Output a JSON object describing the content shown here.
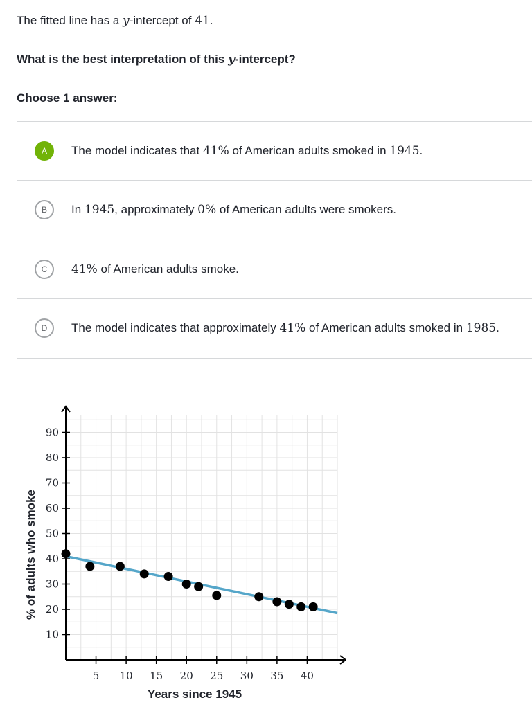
{
  "prompt": {
    "pre": "The fitted line has a ",
    "var": "y",
    "mid": "-intercept of ",
    "value": "41",
    "post": "."
  },
  "question": {
    "pre": "What is the best interpretation of this ",
    "var": "y",
    "post": "-intercept?"
  },
  "choose_label": "Choose 1 answer:",
  "choices": [
    {
      "letter": "A",
      "selected": true,
      "parts": [
        "The model indicates that ",
        "41%",
        " of American adults smoked in ",
        "1945",
        "."
      ]
    },
    {
      "letter": "B",
      "selected": false,
      "parts": [
        "In ",
        "1945",
        ", approximately ",
        "0%",
        " of American adults were smokers."
      ]
    },
    {
      "letter": "C",
      "selected": false,
      "parts": [
        "",
        "41%",
        " of American adults smoke.",
        "",
        ""
      ]
    },
    {
      "letter": "D",
      "selected": false,
      "parts": [
        "The model indicates that approximately ",
        "41%",
        " of American adults smoked in ",
        "1985",
        "."
      ]
    }
  ],
  "colors": {
    "selected_badge": "#71b307",
    "fit_line": "#55a6c9",
    "points": "#000000",
    "grid": "#e2e2e2",
    "axis": "#000000"
  },
  "chart_data": {
    "type": "scatter",
    "xlabel": "Years since 1945",
    "ylabel": "% of adults who smoke",
    "xlim": [
      0,
      45
    ],
    "ylim": [
      0,
      100
    ],
    "x_grid_step": 2.5,
    "y_grid_step": 5,
    "x_ticks": [
      5,
      10,
      15,
      20,
      25,
      30,
      35,
      40
    ],
    "y_ticks": [
      10,
      20,
      30,
      40,
      50,
      60,
      70,
      80,
      90
    ],
    "grid": true,
    "points": [
      {
        "x": 0,
        "y": 42
      },
      {
        "x": 4,
        "y": 37
      },
      {
        "x": 9,
        "y": 37
      },
      {
        "x": 13,
        "y": 34
      },
      {
        "x": 17,
        "y": 33
      },
      {
        "x": 20,
        "y": 30
      },
      {
        "x": 22,
        "y": 29
      },
      {
        "x": 25,
        "y": 25.5
      },
      {
        "x": 32,
        "y": 25
      },
      {
        "x": 35,
        "y": 23
      },
      {
        "x": 37,
        "y": 22
      },
      {
        "x": 39,
        "y": 21
      },
      {
        "x": 41,
        "y": 21
      }
    ],
    "fit_line": {
      "intercept": 41,
      "slope": -0.5
    }
  }
}
